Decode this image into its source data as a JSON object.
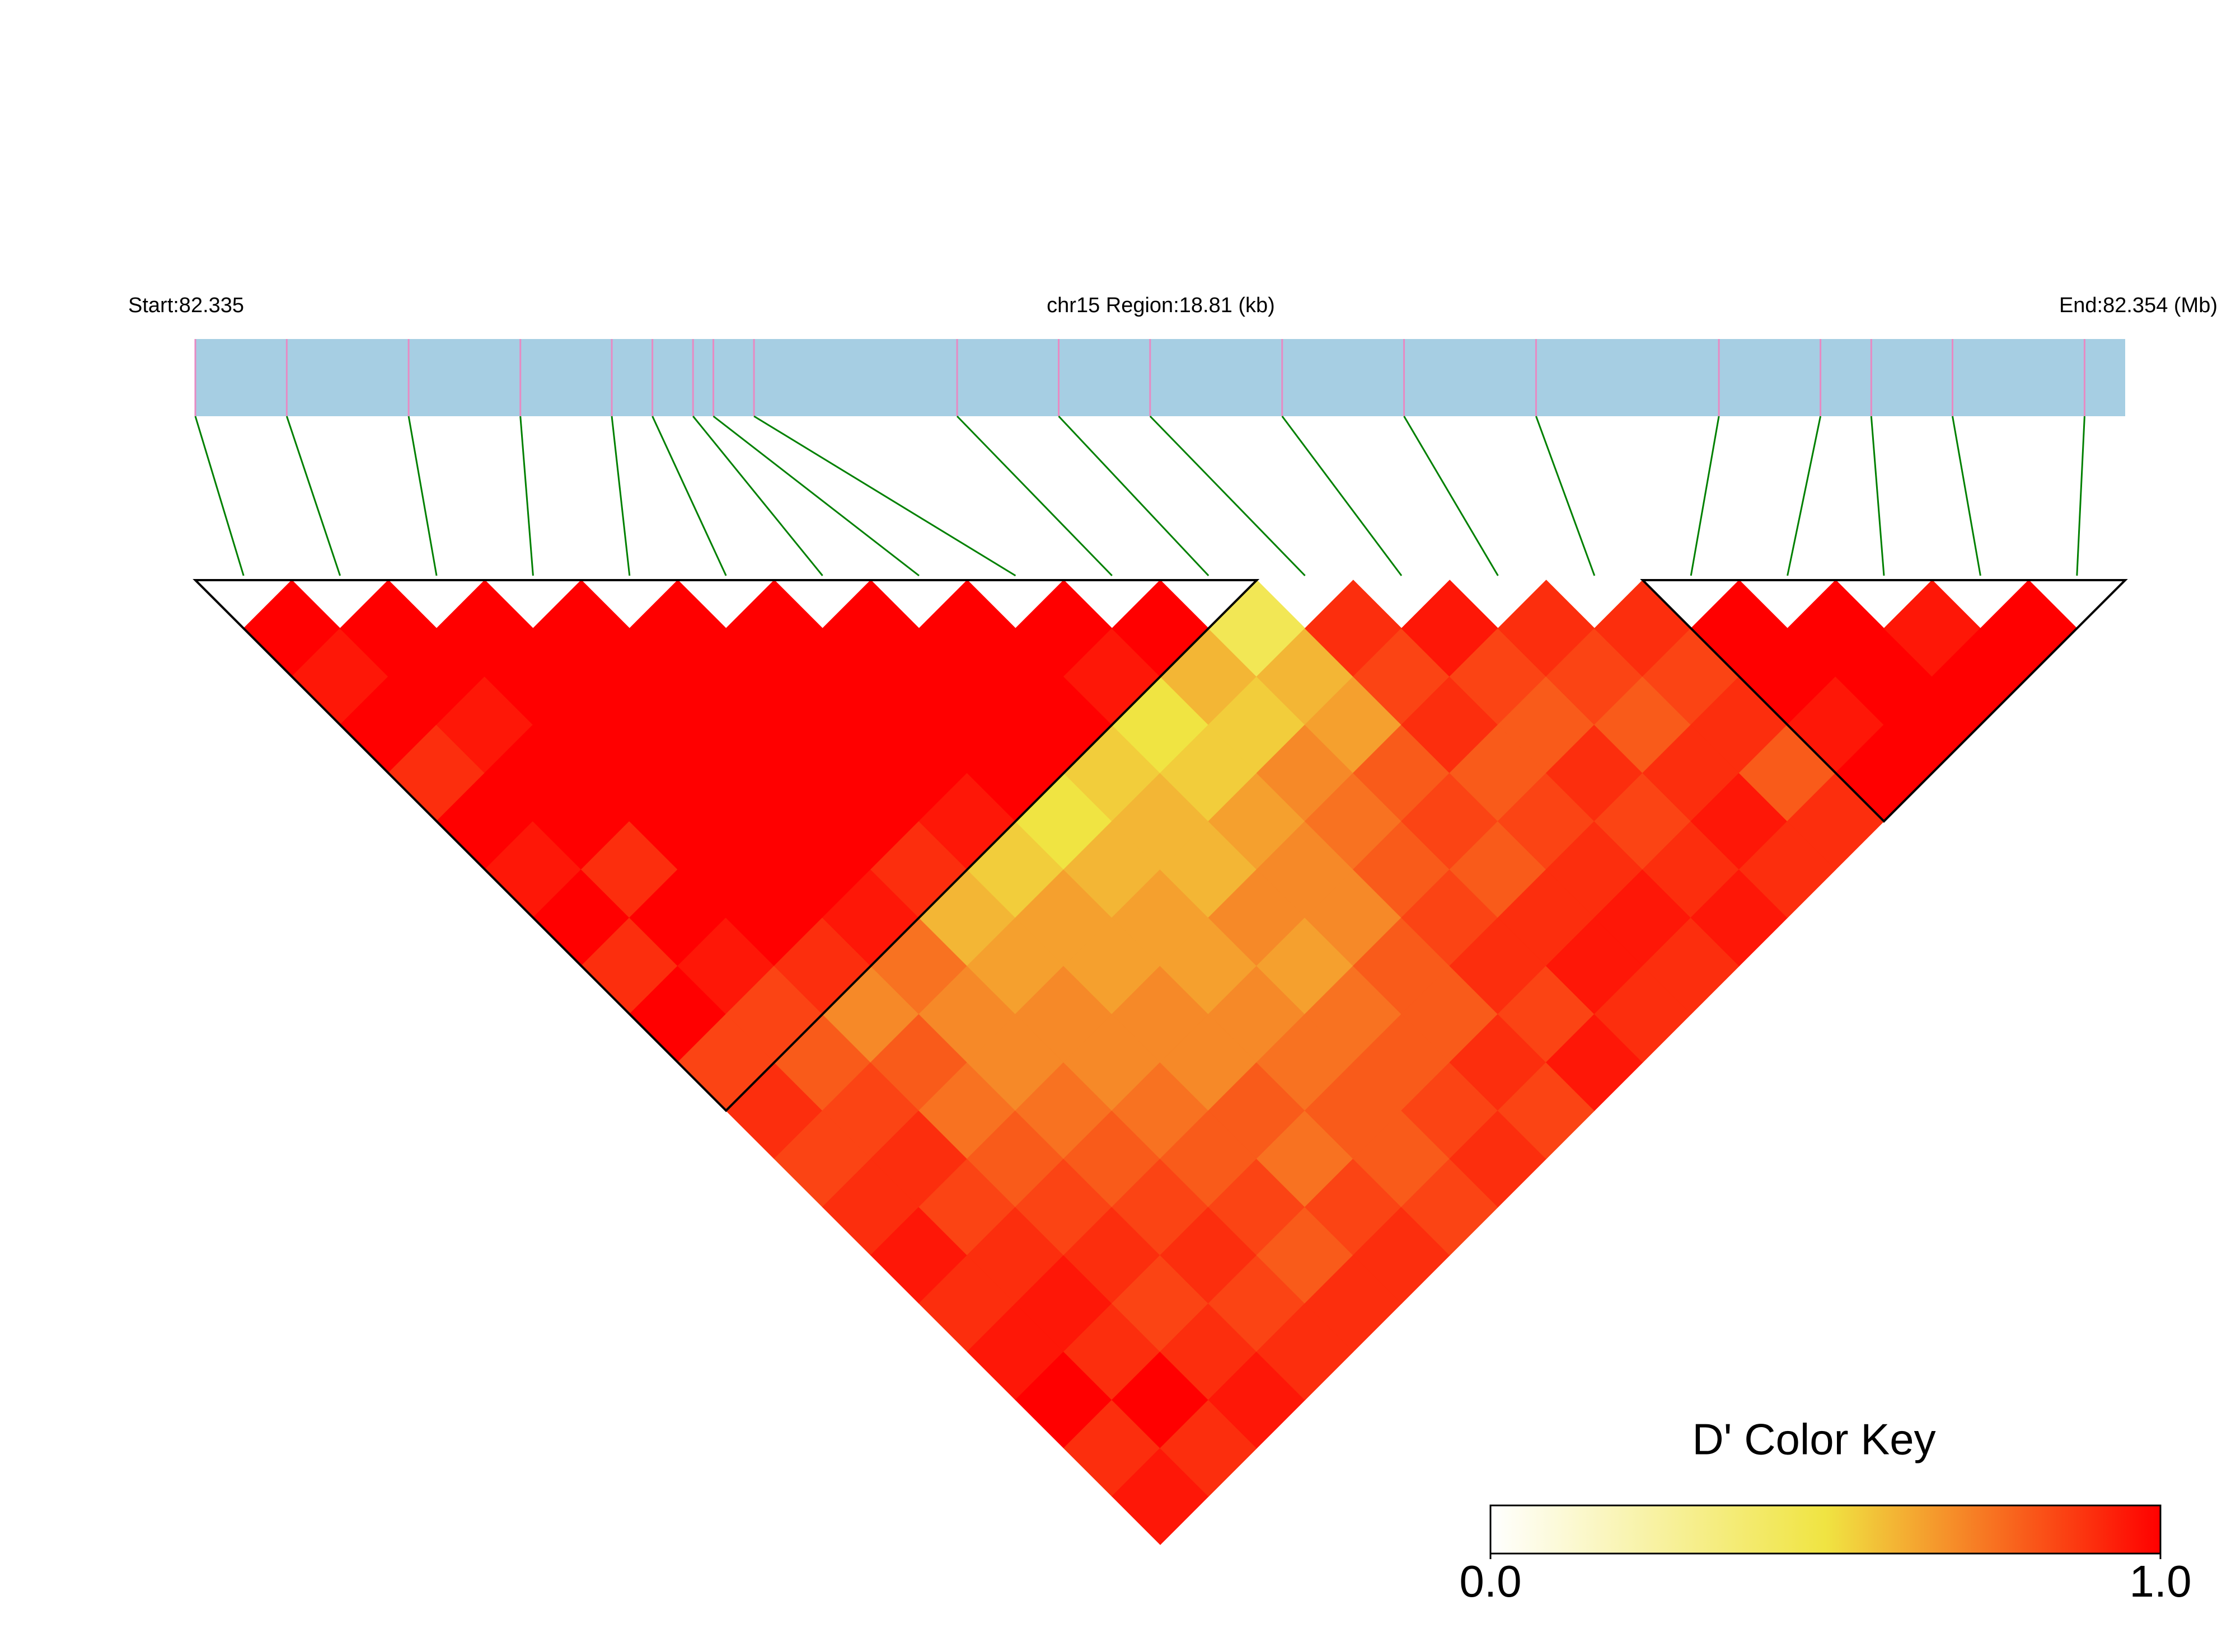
{
  "chart_data": {
    "type": "ld_heatmap",
    "start_label": "Start:82.335",
    "region_label": "chr15 Region:18.81 (kb)",
    "end_label": "End:82.354 (Mb)",
    "xlim": [
      82.335,
      82.354
    ],
    "snp_positions": [
      82.335,
      82.3359,
      82.3371,
      82.3382,
      82.3391,
      82.3395,
      82.3399,
      82.3401,
      82.3405,
      82.3425,
      82.3435,
      82.3444,
      82.3457,
      82.3469,
      82.3482,
      82.35,
      82.351,
      82.3515,
      82.3523,
      82.3536
    ],
    "dprime": [
      [
        1,
        0.95,
        1,
        0.9,
        1,
        0.95,
        1,
        0.9,
        1,
        0.85,
        0.9,
        0.85,
        0.9,
        0.95,
        0.9,
        0.95,
        1,
        0.9,
        0.95
      ],
      [
        1,
        1,
        0.95,
        1,
        1,
        0.9,
        1,
        0.95,
        0.85,
        0.8,
        0.85,
        0.9,
        0.85,
        0.9,
        0.95,
        0.9,
        1,
        0.9
      ],
      [
        1,
        1,
        1,
        1,
        1,
        1,
        1,
        0.9,
        0.7,
        0.8,
        0.75,
        0.8,
        0.85,
        0.9,
        0.85,
        0.9,
        0.95
      ],
      [
        1,
        1,
        1,
        1,
        1,
        1,
        0.95,
        0.75,
        0.7,
        0.7,
        0.75,
        0.8,
        0.85,
        0.9,
        0.85,
        0.9
      ],
      [
        1,
        1,
        1,
        1,
        1,
        0.9,
        0.6,
        0.65,
        0.7,
        0.7,
        0.75,
        0.8,
        0.85,
        0.8,
        0.9
      ],
      [
        1,
        1,
        1,
        1,
        0.95,
        0.55,
        0.65,
        0.65,
        0.7,
        0.7,
        0.8,
        0.75,
        0.85,
        0.9
      ],
      [
        1,
        1,
        1,
        1,
        0.5,
        0.6,
        0.65,
        0.65,
        0.7,
        0.75,
        0.8,
        0.8,
        0.85
      ],
      [
        1,
        1,
        1,
        0.55,
        0.6,
        0.6,
        0.7,
        0.65,
        0.75,
        0.8,
        0.85,
        0.9
      ],
      [
        1,
        0.95,
        0.5,
        0.55,
        0.65,
        0.7,
        0.7,
        0.8,
        0.8,
        0.9,
        0.85
      ],
      [
        1,
        0.6,
        0.55,
        0.7,
        0.75,
        0.8,
        0.85,
        0.9,
        0.85,
        0.95
      ],
      [
        0.45,
        0.6,
        0.65,
        0.8,
        0.85,
        0.8,
        0.9,
        0.95,
        0.9
      ],
      [
        0.9,
        0.85,
        0.9,
        0.8,
        0.85,
        0.9,
        0.95,
        0.9
      ],
      [
        0.95,
        0.85,
        0.8,
        0.9,
        0.85,
        0.9,
        0.95
      ],
      [
        0.9,
        0.85,
        0.8,
        0.9,
        0.95,
        0.9
      ],
      [
        0.9,
        0.85,
        0.9,
        0.8,
        0.9
      ],
      [
        1,
        1,
        0.95,
        1
      ],
      [
        1,
        1,
        1
      ],
      [
        0.95,
        1
      ],
      [
        1
      ]
    ],
    "blocks": [
      [
        0,
        10
      ],
      [
        15,
        19
      ]
    ],
    "bar_color": "#a6cee3",
    "snp_line_color": "#e78ac3",
    "link_color": "#008000",
    "colorscale": [
      "#ffffff",
      "#f0e442",
      "#ff0000"
    ],
    "key_title": "D' Color Key",
    "key_ticks": [
      {
        "value": 0,
        "label": "0.0"
      },
      {
        "value": 1,
        "label": "1.0"
      }
    ]
  }
}
